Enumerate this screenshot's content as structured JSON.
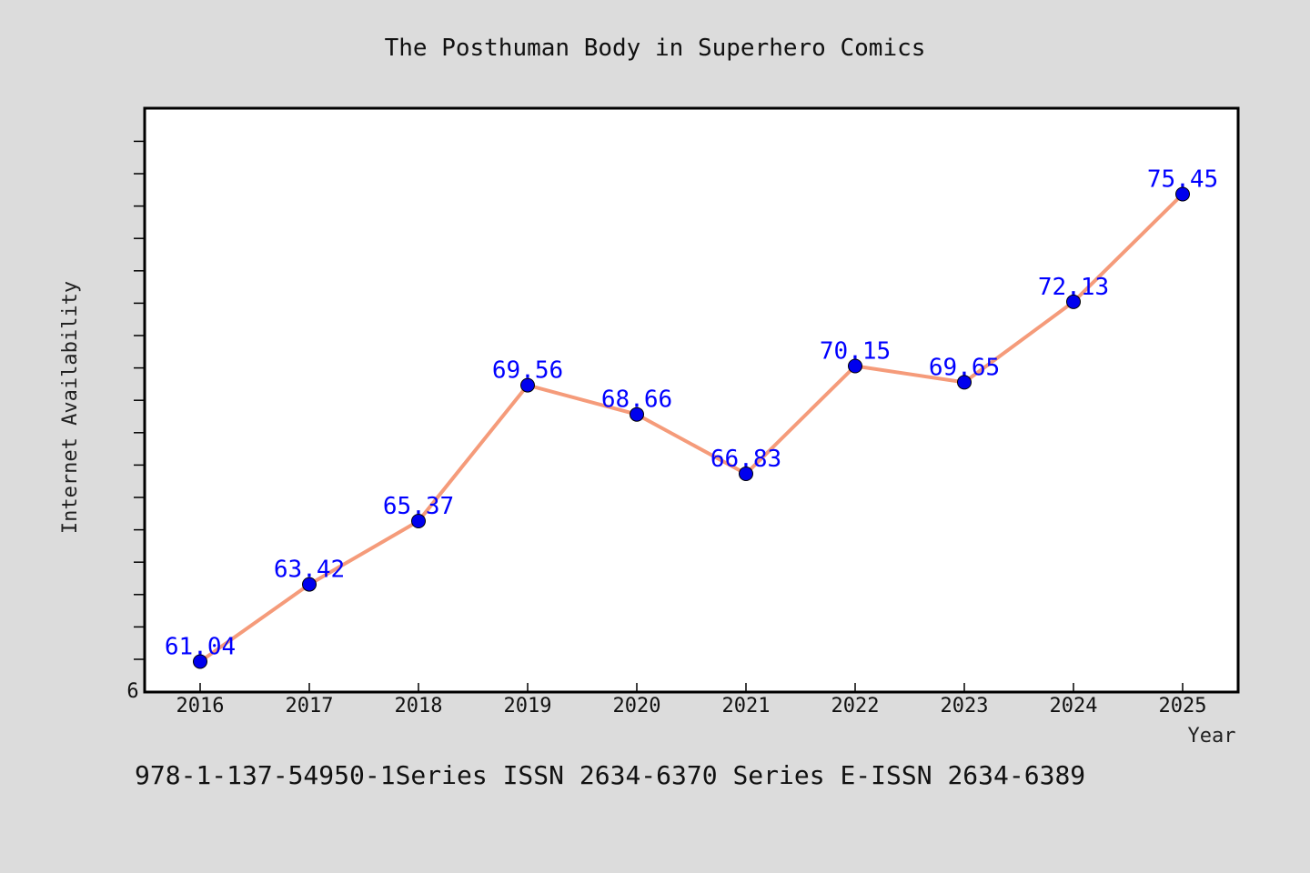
{
  "chart_data": {
    "type": "line",
    "title": "The Posthuman Body in Superhero Comics",
    "xlabel": "Year",
    "ylabel": "Internet Availability",
    "categories": [
      "2016",
      "2017",
      "2018",
      "2019",
      "2020",
      "2021",
      "2022",
      "2023",
      "2024",
      "2025"
    ],
    "series": [
      {
        "values": [
          61.04,
          63.42,
          65.37,
          69.56,
          68.66,
          66.83,
          70.15,
          69.65,
          72.13,
          75.45
        ]
      }
    ],
    "data_labels": [
      "61.04",
      "63.42",
      "65.37",
      "69.56",
      "68.66",
      "66.83",
      "70.15",
      "69.65",
      "72.13",
      "75.45"
    ],
    "y_tick_labels": [
      "6"
    ],
    "ylim": [
      60.1,
      78.1
    ],
    "grid": false,
    "legend": "none"
  },
  "caption": "978-1-137-54950-1Series ISSN 2634-6370 Series E-ISSN 2634-6389",
  "colors": {
    "background": "#dcdcdc",
    "plot_background": "#ffffff",
    "line": "#f59b7a",
    "marker": "#0000ee",
    "data_label": "#0000ff"
  }
}
